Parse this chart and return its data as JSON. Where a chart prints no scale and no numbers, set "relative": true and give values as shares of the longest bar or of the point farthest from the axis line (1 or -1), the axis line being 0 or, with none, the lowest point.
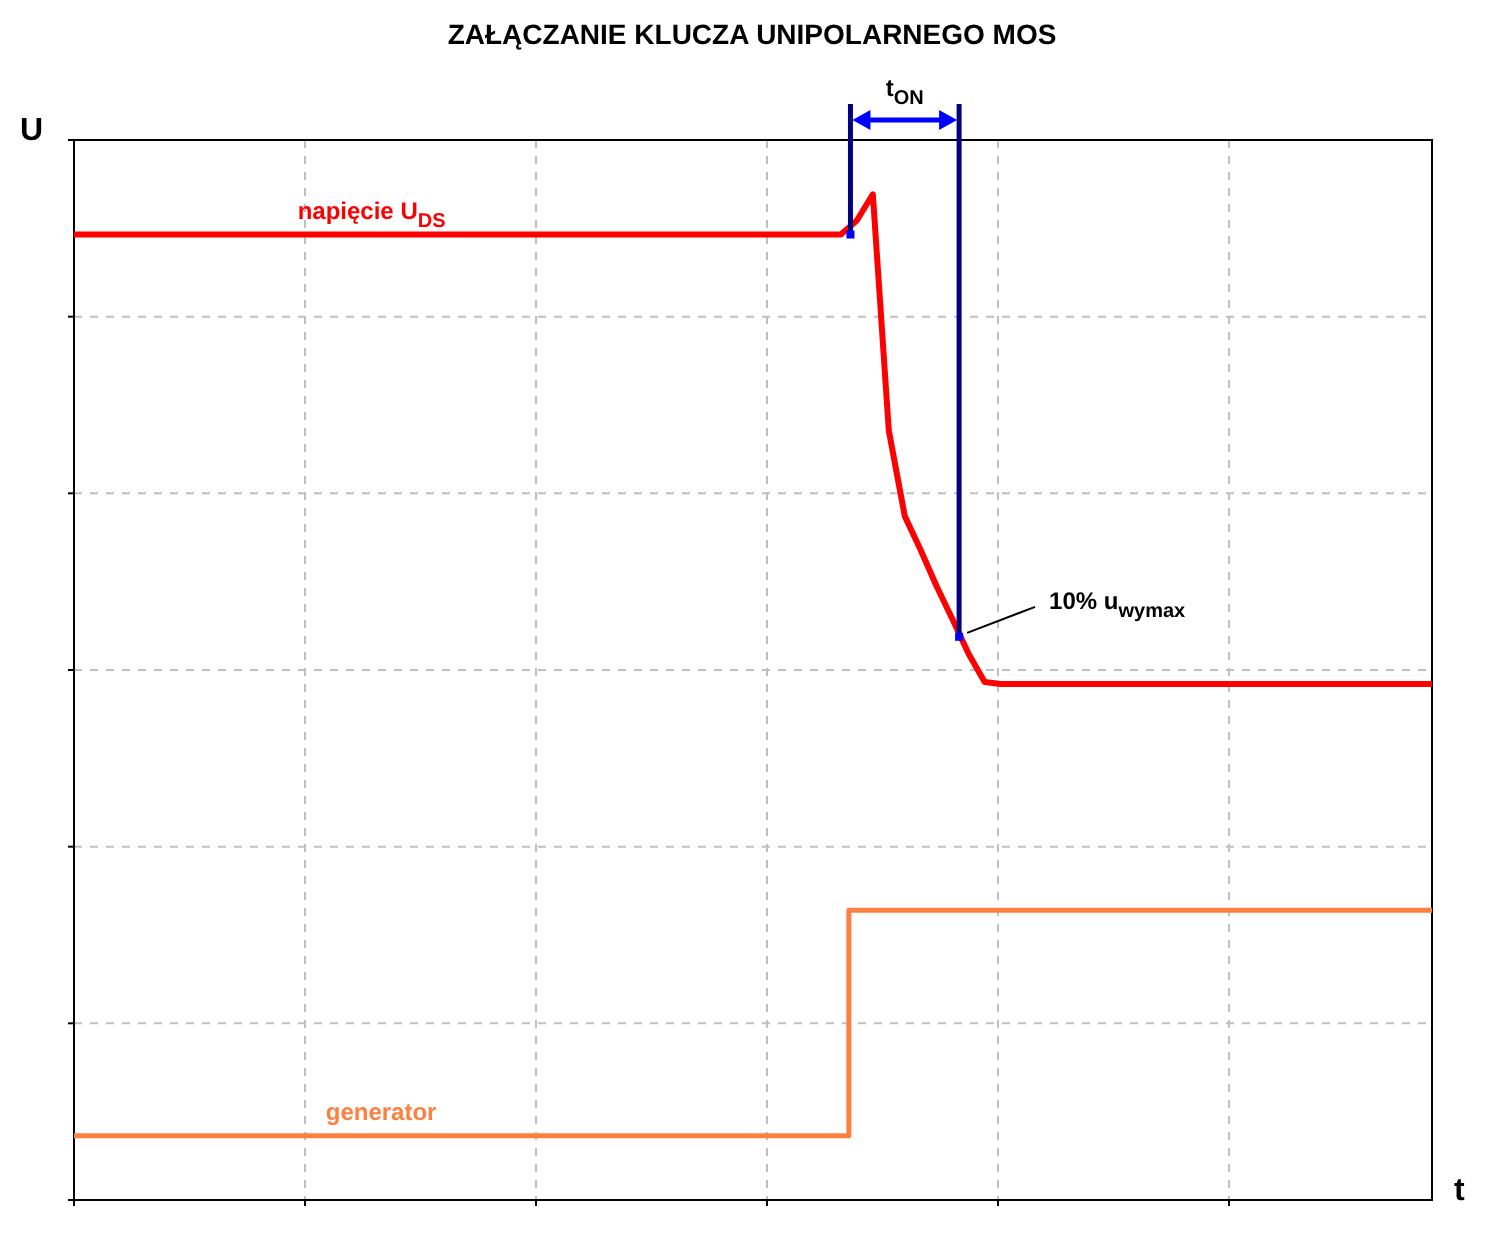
{
  "chart_data": {
    "type": "line",
    "title": "ZAŁĄCZANIE KLUCZA UNIPOLARNEGO MOS",
    "xlabel": "t",
    "ylabel": "U",
    "relative": true,
    "grid": true,
    "legend": false,
    "categories": [
      null,
      null,
      null,
      null,
      null,
      null,
      null,
      null,
      null,
      null,
      null,
      null,
      null,
      null,
      null,
      null,
      null,
      null,
      null,
      null,
      null,
      null,
      null,
      null,
      null,
      null,
      null,
      null,
      null,
      null,
      null,
      null,
      null,
      null,
      null,
      null,
      null,
      null,
      null,
      null,
      null,
      null,
      null,
      null,
      null,
      null,
      null,
      null,
      null,
      null,
      null,
      null,
      null,
      null,
      null,
      null,
      null,
      null,
      null,
      null,
      null,
      null,
      null,
      null,
      null,
      null,
      null,
      null,
      null,
      null,
      null,
      null,
      null,
      null,
      null,
      null,
      null,
      null,
      null,
      null,
      null,
      null,
      null,
      null,
      null,
      null
    ],
    "series": [
      {
        "name": "napięcie U$_{DS}$",
        "color": "#ff0000",
        "values": [
          0.96,
          0.96,
          0.96,
          0.96,
          0.96,
          0.96,
          0.96,
          0.96,
          0.96,
          0.96,
          0.96,
          0.96,
          0.96,
          0.96,
          0.96,
          0.96,
          0.96,
          0.96,
          0.96,
          0.96,
          0.96,
          0.96,
          0.96,
          0.96,
          0.96,
          0.96,
          0.96,
          0.96,
          0.96,
          0.96,
          0.96,
          0.96,
          0.96,
          0.96,
          0.96,
          0.96,
          0.96,
          0.96,
          0.96,
          0.96,
          0.96,
          0.96,
          0.96,
          0.96,
          0.96,
          0.96,
          0.96,
          0.96,
          0.96,
          0.974,
          1,
          0.765,
          0.68,
          0.646,
          0.61,
          0.577,
          0.543,
          0.515,
          0.513,
          0.513,
          0.513,
          0.513,
          0.513,
          0.513,
          0.513,
          0.513,
          0.513,
          0.513,
          0.513,
          0.513,
          0.513,
          0.513,
          0.513,
          0.513,
          0.513,
          0.513,
          0.513,
          0.513,
          0.513,
          0.513,
          0.513,
          0.513,
          0.513,
          0.513,
          0.513,
          0.513
        ]
      },
      {
        "name": "generator",
        "type": "step",
        "color": "#ff7f3f",
        "values": [
          0.064,
          0.064,
          0.064,
          0.064,
          0.064,
          0.064,
          0.064,
          0.064,
          0.064,
          0.064,
          0.064,
          0.064,
          0.064,
          0.064,
          0.064,
          0.064,
          0.064,
          0.064,
          0.064,
          0.064,
          0.064,
          0.064,
          0.064,
          0.064,
          0.064,
          0.064,
          0.064,
          0.064,
          0.064,
          0.064,
          0.064,
          0.064,
          0.064,
          0.064,
          0.064,
          0.064,
          0.064,
          0.064,
          0.064,
          0.064,
          0.064,
          0.064,
          0.064,
          0.064,
          0.064,
          0.064,
          0.064,
          0.064,
          0.064,
          0.288,
          0.288,
          0.288,
          0.288,
          0.288,
          0.288,
          0.288,
          0.288,
          0.288,
          0.288,
          0.288,
          0.288,
          0.288,
          0.288,
          0.288,
          0.288,
          0.288,
          0.288,
          0.288,
          0.288,
          0.288,
          0.288,
          0.288,
          0.288,
          0.288,
          0.288,
          0.288,
          0.288,
          0.288,
          0.288,
          0.288,
          0.288,
          0.288,
          0.288,
          0.288,
          0.288,
          0.288
        ]
      }
    ],
    "annotations": [
      "t$_{ON}$",
      "10% u$_{wymax}$"
    ]
  }
}
